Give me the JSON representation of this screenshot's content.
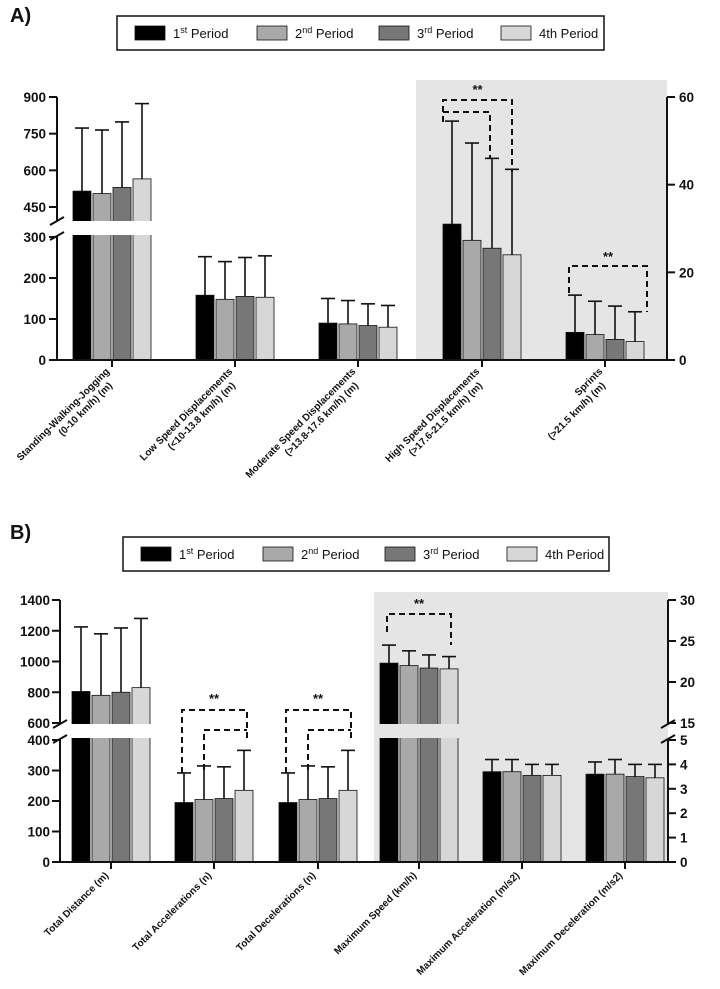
{
  "colors": {
    "period_1": "#000000",
    "period_2": "#a9a9a9",
    "period_3": "#777777",
    "period_4": "#d7d7d7",
    "shade": "#e5e5e5"
  },
  "legend": [
    {
      "label": "1",
      "sup": "st",
      "rest": " Period"
    },
    {
      "label": "2",
      "sup": "nd",
      "rest": " Period"
    },
    {
      "label": "3",
      "sup": "rd",
      "rest": " Period"
    },
    {
      "label": "4th Period",
      "sup": "",
      "rest": ""
    }
  ],
  "significance_mark": "**",
  "chart_data": [
    {
      "panel": "A)",
      "type": "bar",
      "series_names": [
        "1st Period",
        "2nd Period",
        "3rd Period",
        "4th Period"
      ],
      "categories": [
        "Standing-Walking-Jogging (0-10 km/h) (m)",
        "Low Speed Displacements (<10-13.8 km/h) (m)",
        "Moderate Speed Displacements (>13.8-17.6 km/h) (m)",
        "High Speed Displacements (>17.6-21.5 km/h) (m)",
        "Sprints (>21.5 km/h) (m)"
      ],
      "category_lines": [
        [
          "Standing-Walking-Jogging",
          "(0-10 km/h) (m)"
        ],
        [
          "Low Speed Displacements",
          "(<10-13.8 km/h) (m)"
        ],
        [
          "Moderate Speed Displacements",
          "(>13.8-17.6 km/h) (m)"
        ],
        [
          "High Speed Displacements",
          "(>17.6-21.5 km/h) (m)"
        ],
        [
          "Sprints",
          "(>21.5 km/h) (m)"
        ]
      ],
      "axis": [
        [
          0,
          1,
          1,
          1,
          1
        ],
        [
          "left",
          "left",
          "left",
          "right",
          "right"
        ]
      ],
      "values": [
        [
          515,
          505,
          530,
          565
        ],
        [
          158,
          148,
          155,
          153
        ],
        [
          90,
          88,
          84,
          80
        ],
        [
          31,
          27.3,
          25.5,
          24
        ],
        [
          6.3,
          5.8,
          4.7,
          4.2
        ]
      ],
      "errors_upper": [
        [
          773,
          765,
          798,
          873
        ],
        [
          252,
          240,
          250,
          254
        ],
        [
          150,
          145,
          137,
          133
        ],
        [
          54.5,
          49.5,
          46,
          43.5
        ],
        [
          14.8,
          13.4,
          12.3,
          11
        ]
      ],
      "left_axis": {
        "upper_range": [
          400,
          900
        ],
        "upper_ticks": [
          "450",
          "600",
          "750",
          "900"
        ],
        "lower_range": [
          0,
          300
        ],
        "lower_ticks": [
          "0",
          "100",
          "200",
          "300"
        ]
      },
      "right_axis": {
        "range": [
          0,
          60
        ],
        "ticks": [
          "0",
          "20",
          "40",
          "60"
        ]
      },
      "shaded_categories": [
        3,
        4
      ],
      "significance": [
        {
          "category": 3,
          "from_bar": 0,
          "to_bars": [
            2,
            3
          ],
          "label": "**"
        },
        {
          "category": 4,
          "from_bar": 0,
          "to_bars": [
            3
          ],
          "label": "**"
        }
      ]
    },
    {
      "panel": "B)",
      "type": "bar",
      "series_names": [
        "1st Period",
        "2nd Period",
        "3rd Period",
        "4th Period"
      ],
      "categories": [
        "Total Distance (m)",
        "Total Accelerations (n)",
        "Total Decelerations (n)",
        "Maximum Speed (km/h)",
        "Maximum Acceleration (m/s2)",
        "Maximum Deceleration (m/s2)"
      ],
      "category_lines": [
        [
          "Total Distance (m)"
        ],
        [
          "Total Accelerations (n)"
        ],
        [
          "Total Decelerations (n)"
        ],
        [
          "Maximum Speed (km/h)"
        ],
        [
          "Maximum Acceleration (m/s2)"
        ],
        [
          "Maximum Deceleration (m/s2)"
        ]
      ],
      "values": [
        [
          805,
          780,
          800,
          830
        ],
        [
          195,
          205,
          208,
          235
        ],
        [
          195,
          205,
          208,
          235
        ],
        [
          22.3,
          22,
          21.7,
          21.6
        ],
        [
          3.7,
          3.7,
          3.55,
          3.55
        ],
        [
          3.6,
          3.6,
          3.5,
          3.45
        ]
      ],
      "errors_upper": [
        [
          1225,
          1180,
          1218,
          1280
        ],
        [
          292,
          315,
          312,
          366
        ],
        [
          292,
          315,
          312,
          366
        ],
        [
          24.5,
          23.8,
          23.3,
          23.1
        ],
        [
          4.2,
          4.2,
          4.0,
          4.0
        ],
        [
          4.1,
          4.2,
          4.0,
          4.0
        ]
      ],
      "left_axis": {
        "upper_range": [
          600,
          1400
        ],
        "upper_ticks": [
          "600",
          "800",
          "1000",
          "1200",
          "1400"
        ],
        "lower_range": [
          0,
          400
        ],
        "lower_ticks": [
          "0",
          "100",
          "200",
          "300",
          "400"
        ]
      },
      "right_axis": {
        "upper_range": [
          15,
          30
        ],
        "upper_ticks": [
          "15",
          "20",
          "25",
          "30"
        ],
        "lower_range": [
          0,
          5
        ],
        "lower_ticks": [
          "0",
          "1",
          "2",
          "3",
          "4",
          "5"
        ]
      },
      "shaded_categories": [
        3,
        4,
        5
      ],
      "significance": [
        {
          "category": 1,
          "from_bar": 0,
          "to_bars": [
            3
          ],
          "label": "**"
        },
        {
          "category": 1,
          "from_bar": 1,
          "to_bars": [
            3
          ],
          "label": ""
        },
        {
          "category": 2,
          "from_bar": 0,
          "to_bars": [
            3
          ],
          "label": "**"
        },
        {
          "category": 2,
          "from_bar": 1,
          "to_bars": [
            3
          ],
          "label": ""
        },
        {
          "category": 3,
          "from_bar": 0,
          "to_bars": [
            3
          ],
          "label": "**"
        }
      ]
    }
  ]
}
